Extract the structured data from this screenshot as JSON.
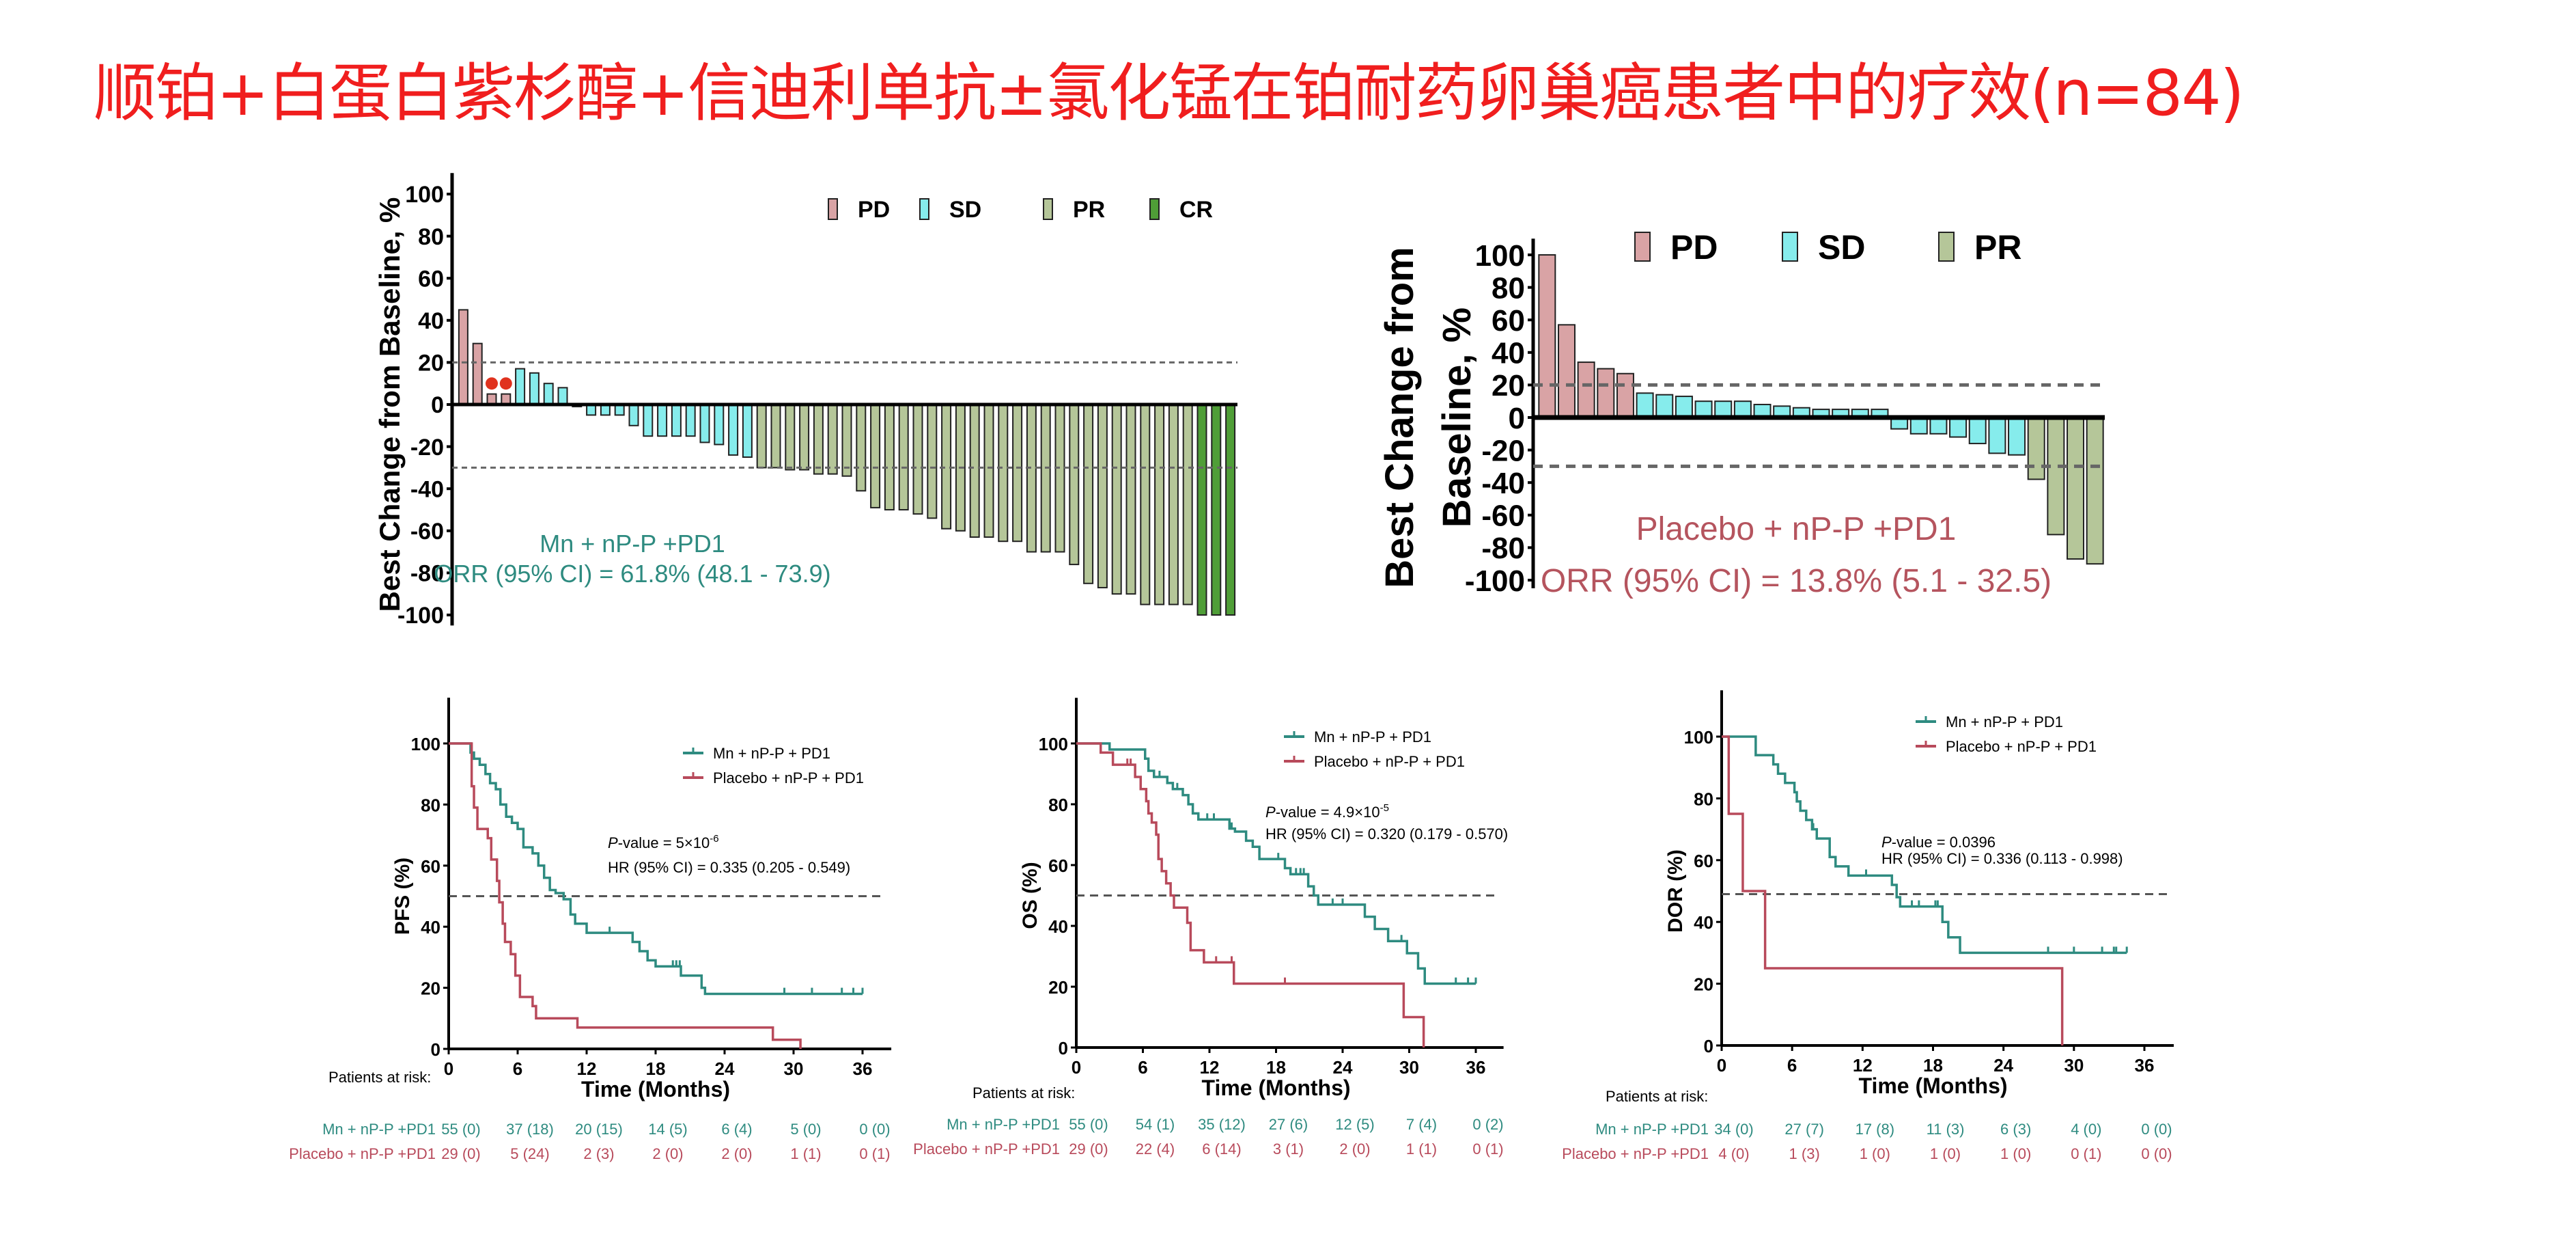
{
  "title": "顺铂+白蛋白紫杉醇+信迪利单抗±氯化锰在铂耐药卵巢癌患者中的疗效(n=84)",
  "colors": {
    "title": "#f01e1e",
    "PD": "#d9a3a5",
    "SD": "#86ecec",
    "PR": "#b5c699",
    "CR": "#4f9e37",
    "teal": "#2e8b80",
    "red": "#b84a5b"
  },
  "chart_data": [
    {
      "type": "bar",
      "ylabel": "Best Change from Baseline, %",
      "ylim": [
        -100,
        100
      ],
      "yticks": [
        "100",
        "80",
        "60",
        "40",
        "20",
        "0",
        "-20",
        "-40",
        "-60",
        "-80",
        "-100"
      ],
      "legend": [
        "PD",
        "SD",
        "PR",
        "CR"
      ],
      "reference_lines": [
        20,
        -30
      ],
      "annotation": [
        "Mn + nP-P +PD1",
        "ORR (95% CI) = 61.8% (48.1 - 73.9)"
      ],
      "values": [
        45,
        29,
        5,
        5,
        17,
        15,
        10,
        8,
        -1,
        -5,
        -5,
        -5,
        -10,
        -15,
        -15,
        -15,
        -15,
        -18,
        -19,
        -24,
        -25,
        -30,
        -30,
        -31,
        -31,
        -33,
        -33,
        -34,
        -41,
        -49,
        -50,
        -50,
        -52,
        -54,
        -59,
        -60,
        -63,
        -63,
        -65,
        -65,
        -70,
        -70,
        -70,
        -76,
        -85,
        -87,
        -90,
        -90,
        -95,
        -95,
        -95,
        -95,
        -100,
        -100,
        -100
      ],
      "categories": [
        "PD",
        "PD",
        "PD",
        "PD",
        "SD",
        "SD",
        "SD",
        "SD",
        "SD",
        "SD",
        "SD",
        "SD",
        "SD",
        "SD",
        "SD",
        "SD",
        "SD",
        "SD",
        "SD",
        "SD",
        "SD",
        "PR",
        "PR",
        "PR",
        "PR",
        "PR",
        "PR",
        "PR",
        "PR",
        "PR",
        "PR",
        "PR",
        "PR",
        "PR",
        "PR",
        "PR",
        "PR",
        "PR",
        "PR",
        "PR",
        "PR",
        "PR",
        "PR",
        "PR",
        "PR",
        "PR",
        "PR",
        "PR",
        "PR",
        "PR",
        "PR",
        "PR",
        "CR",
        "CR",
        "CR"
      ],
      "markers": [
        2,
        3
      ]
    },
    {
      "type": "bar",
      "ylabel": [
        "Best Change from",
        "Baseline, %"
      ],
      "ylim": [
        -100,
        100
      ],
      "yticks": [
        "100",
        "80",
        "60",
        "40",
        "20",
        "0",
        "-20",
        "-40",
        "-60",
        "-80",
        "-100"
      ],
      "legend": [
        "PD",
        "SD",
        "PR"
      ],
      "reference_lines": [
        20,
        -30
      ],
      "annotation": [
        "Placebo + nP-P +PD1",
        "ORR (95% CI) = 13.8% (5.1 - 32.5)"
      ],
      "values": [
        100,
        57,
        34,
        30,
        27,
        15,
        14,
        13,
        10,
        10,
        10,
        8,
        7,
        6,
        5,
        5,
        5,
        5,
        -7,
        -10,
        -10,
        -12,
        -16,
        -22,
        -23,
        -38,
        -72,
        -87,
        -90
      ],
      "categories": [
        "PD",
        "PD",
        "PD",
        "PD",
        "PD",
        "SD",
        "SD",
        "SD",
        "SD",
        "SD",
        "SD",
        "SD",
        "SD",
        "SD",
        "SD",
        "SD",
        "SD",
        "SD",
        "SD",
        "SD",
        "SD",
        "SD",
        "SD",
        "SD",
        "SD",
        "PR",
        "PR",
        "PR",
        "PR"
      ]
    },
    {
      "type": "line",
      "ylabel": "PFS (%)",
      "xlabel": "Time (Months)",
      "xticks": [
        "0",
        "6",
        "12",
        "18",
        "24",
        "30",
        "36"
      ],
      "yticks": [
        "0",
        "20",
        "40",
        "60",
        "80",
        "100"
      ],
      "xlim": [
        0,
        36
      ],
      "ylim": [
        0,
        100
      ],
      "reference_line": 50,
      "p_prefix": "P",
      "p_text": "-value = 5×10",
      "p_exp": "-6",
      "hr_text": "HR (95% CI) = 0.335 (0.205 - 0.549)",
      "series": [
        {
          "name": "Mn + nP-P + PD1",
          "points": [
            [
              0,
              100
            ],
            [
              1.8,
              100
            ],
            [
              1.9,
              97
            ],
            [
              2.2,
              95
            ],
            [
              2.7,
              93
            ],
            [
              3.2,
              90
            ],
            [
              3.6,
              87
            ],
            [
              4.1,
              85
            ],
            [
              4.5,
              80
            ],
            [
              5,
              76
            ],
            [
              5.5,
              74
            ],
            [
              6,
              72
            ],
            [
              6.5,
              66
            ],
            [
              7.3,
              64
            ],
            [
              7.8,
              60
            ],
            [
              8.3,
              56
            ],
            [
              8.8,
              52
            ],
            [
              9.3,
              51
            ],
            [
              10,
              49
            ],
            [
              10.6,
              44
            ],
            [
              11,
              41
            ],
            [
              12,
              38
            ],
            [
              16,
              35
            ],
            [
              16.6,
              32
            ],
            [
              17.3,
              29
            ],
            [
              18,
              27
            ],
            [
              20.2,
              24
            ],
            [
              22,
              20
            ],
            [
              22.3,
              18
            ],
            [
              36,
              18
            ]
          ],
          "censored": [
            14,
            19.5,
            19.8,
            20.1,
            29.2,
            31.6,
            34.2,
            35.2,
            36
          ]
        },
        {
          "name": "Placebo + nP-P + PD1",
          "points": [
            [
              0,
              100
            ],
            [
              1.7,
              100
            ],
            [
              2,
              86
            ],
            [
              2.2,
              79
            ],
            [
              2.5,
              72
            ],
            [
              3.4,
              69
            ],
            [
              3.7,
              62
            ],
            [
              4.2,
              55
            ],
            [
              4.4,
              48
            ],
            [
              4.7,
              41
            ],
            [
              4.9,
              35
            ],
            [
              5.4,
              31
            ],
            [
              5.8,
              24
            ],
            [
              6.2,
              17
            ],
            [
              7.3,
              14
            ],
            [
              7.6,
              10
            ],
            [
              11.2,
              7
            ],
            [
              28.2,
              3
            ],
            [
              30.6,
              0
            ]
          ],
          "censored": []
        }
      ],
      "risk_label": "Patients at risk:",
      "risk_rows": [
        {
          "label": "Mn + nP-P +PD1",
          "values": [
            "55 (0)",
            "37 (18)",
            "20 (15)",
            "14 (5)",
            "6 (4)",
            "5 (0)",
            "0 (0)"
          ]
        },
        {
          "label": "Placebo + nP-P +PD1",
          "values": [
            "29 (0)",
            "5 (24)",
            "2 (3)",
            "2 (0)",
            "2 (0)",
            "1 (1)",
            "0 (1)"
          ]
        }
      ]
    },
    {
      "type": "line",
      "ylabel": "OS (%)",
      "xlabel": "Time (Months)",
      "xticks": [
        "0",
        "6",
        "12",
        "18",
        "24",
        "30",
        "36"
      ],
      "yticks": [
        "0",
        "20",
        "40",
        "60",
        "80",
        "100"
      ],
      "xlim": [
        0,
        36
      ],
      "ylim": [
        0,
        100
      ],
      "reference_line": 50,
      "p_prefix": "P",
      "p_text": "-value = 4.9×10",
      "p_exp": "-5",
      "hr_text": "HR (95% CI) = 0.320 (0.179 - 0.570)",
      "series": [
        {
          "name": "Mn + nP-P + PD1",
          "points": [
            [
              0,
              100
            ],
            [
              3,
              98
            ],
            [
              6.2,
              95
            ],
            [
              6.5,
              91
            ],
            [
              7,
              89
            ],
            [
              8.2,
              87
            ],
            [
              8.7,
              85
            ],
            [
              9.6,
              83
            ],
            [
              10.1,
              80
            ],
            [
              10.5,
              77
            ],
            [
              11,
              75
            ],
            [
              13.8,
              72
            ],
            [
              14.3,
              71
            ],
            [
              15.3,
              68
            ],
            [
              15.9,
              66
            ],
            [
              16.5,
              62
            ],
            [
              18.8,
              59
            ],
            [
              19.3,
              57
            ],
            [
              20.9,
              53
            ],
            [
              21.4,
              50
            ],
            [
              21.8,
              47
            ],
            [
              26,
              43
            ],
            [
              26.9,
              39
            ],
            [
              28.1,
              35
            ],
            [
              29.8,
              31
            ],
            [
              30.8,
              26
            ],
            [
              31.4,
              21
            ],
            [
              36,
              21
            ]
          ],
          "censored": [
            7.5,
            9.1,
            11.8,
            12.4,
            14,
            18.2,
            19.8,
            20.2,
            20.5,
            23.1,
            24,
            29.3,
            34.2,
            35.3,
            36
          ]
        },
        {
          "name": "Placebo + nP-P + PD1",
          "points": [
            [
              0,
              100
            ],
            [
              2.2,
              97
            ],
            [
              3.3,
              93
            ],
            [
              5.3,
              89
            ],
            [
              5.8,
              85
            ],
            [
              6.3,
              81
            ],
            [
              6.5,
              77
            ],
            [
              6.8,
              74
            ],
            [
              7.2,
              70
            ],
            [
              7.4,
              62
            ],
            [
              7.7,
              58
            ],
            [
              8.1,
              54
            ],
            [
              8.5,
              50
            ],
            [
              8.8,
              46
            ],
            [
              10,
              41
            ],
            [
              10.3,
              32
            ],
            [
              11.5,
              28
            ],
            [
              14.2,
              21
            ],
            [
              29.5,
              10
            ],
            [
              31.3,
              0
            ]
          ],
          "censored": [
            4.6,
            4.9,
            12.6,
            14,
            18.8
          ]
        }
      ],
      "risk_label": "Patients at risk:",
      "risk_rows": [
        {
          "label": "Mn + nP-P +PD1",
          "values": [
            "55 (0)",
            "54 (1)",
            "35 (12)",
            "27 (6)",
            "12 (5)",
            "7 (4)",
            "0 (2)"
          ]
        },
        {
          "label": "Placebo + nP-P +PD1",
          "values": [
            "29 (0)",
            "22 (4)",
            "6 (14)",
            "3 (1)",
            "2 (0)",
            "1 (1)",
            "0 (1)"
          ]
        }
      ]
    },
    {
      "type": "line",
      "ylabel": "DOR (%)",
      "xlabel": "Time (Months)",
      "xticks": [
        "0",
        "6",
        "12",
        "18",
        "24",
        "30",
        "36"
      ],
      "yticks": [
        "0",
        "20",
        "40",
        "60",
        "80",
        "100"
      ],
      "xlim": [
        0,
        36
      ],
      "ylim": [
        0,
        100
      ],
      "reference_line": 49,
      "p_prefix": "P",
      "p_text": "-value = 0.0396",
      "p_exp": "",
      "hr_text": "HR (95% CI) = 0.336 (0.113 - 0.998)",
      "series": [
        {
          "name": "Mn + nP-P + PD1",
          "points": [
            [
              0,
              100
            ],
            [
              2.8,
              100
            ],
            [
              2.9,
              94
            ],
            [
              4.4,
              91
            ],
            [
              4.8,
              88
            ],
            [
              5.4,
              85
            ],
            [
              6.2,
              82
            ],
            [
              6.4,
              79
            ],
            [
              6.7,
              76
            ],
            [
              7.2,
              73
            ],
            [
              7.7,
              70
            ],
            [
              8.1,
              67
            ],
            [
              9.2,
              61
            ],
            [
              9.7,
              58
            ],
            [
              10.8,
              55
            ],
            [
              14.5,
              52
            ],
            [
              14.9,
              48
            ],
            [
              15.2,
              45
            ],
            [
              18.8,
              40
            ],
            [
              19.3,
              35
            ],
            [
              20.3,
              30
            ],
            [
              34.5,
              30
            ]
          ],
          "censored": [
            7.8,
            12.3,
            16.2,
            16.8,
            18.2,
            18.4,
            27.8,
            30,
            32.4,
            33.4,
            33.6,
            34.5
          ]
        },
        {
          "name": "Placebo + nP-P + PD1",
          "points": [
            [
              0,
              100
            ],
            [
              0.6,
              75
            ],
            [
              1.8,
              50
            ],
            [
              3.7,
              25
            ],
            [
              29,
              0
            ]
          ],
          "censored": []
        }
      ],
      "risk_label": "Patients at risk:",
      "risk_rows": [
        {
          "label": "Mn + nP-P +PD1",
          "values": [
            "34 (0)",
            "27 (7)",
            "17 (8)",
            "11 (3)",
            "6 (3)",
            "4 (0)",
            "0 (0)"
          ]
        },
        {
          "label": "Placebo + nP-P +PD1",
          "values": [
            "4 (0)",
            "1 (3)",
            "1 (0)",
            "1 (0)",
            "1 (0)",
            "0 (1)",
            "0 (0)"
          ]
        }
      ]
    }
  ]
}
